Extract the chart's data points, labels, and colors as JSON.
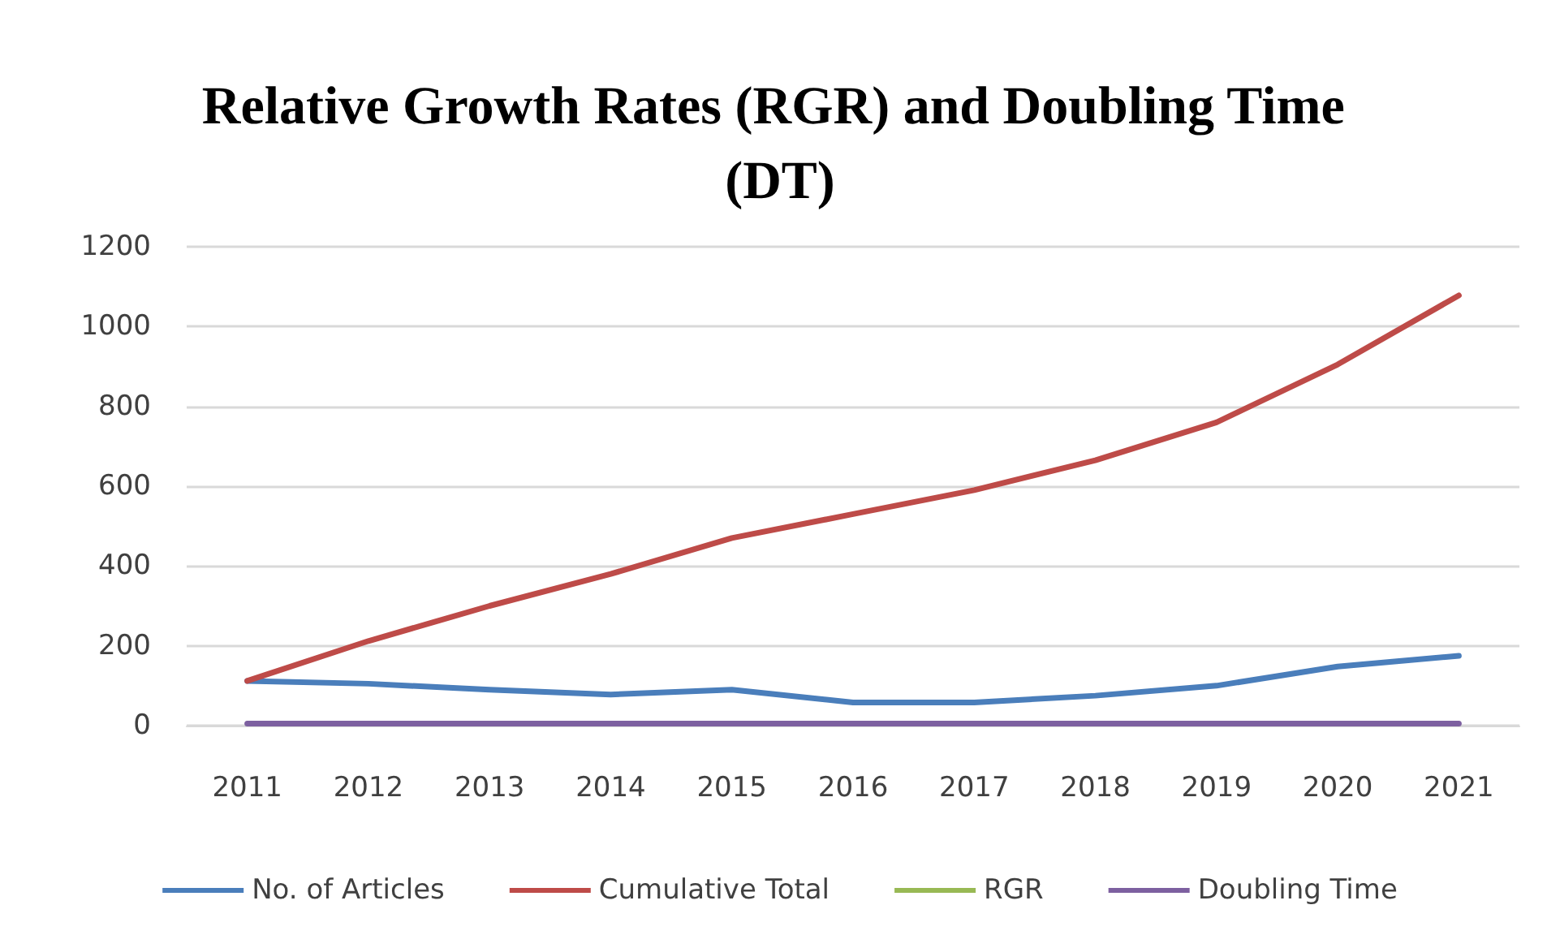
{
  "chart_data": {
    "type": "line",
    "title": "Relative Growth Rates (RGR) and Doubling Time (DT)",
    "categories": [
      "2011",
      "2012",
      "2013",
      "2014",
      "2015",
      "2016",
      "2017",
      "2018",
      "2019",
      "2020",
      "2021"
    ],
    "series": [
      {
        "name": "No. of Articles",
        "color": "#4a7ebb",
        "values": [
          112,
          105,
          90,
          78,
          90,
          58,
          58,
          75,
          100,
          148,
          175
        ]
      },
      {
        "name": "Cumulative Total",
        "color": "#be4b48",
        "values": [
          112,
          212,
          300,
          380,
          470,
          530,
          590,
          665,
          760,
          905,
          1078
        ]
      },
      {
        "name": "RGR",
        "color": "#98b954",
        "values": [
          null,
          null,
          null,
          null,
          null,
          null,
          null,
          null,
          null,
          null,
          null
        ]
      },
      {
        "name": "Doubling Time",
        "color": "#7d60a0",
        "values": [
          5,
          5,
          5,
          5,
          5,
          5,
          5,
          5,
          5,
          5,
          5
        ]
      }
    ],
    "ylim": [
      0,
      1200
    ],
    "yticks": [
      0,
      200,
      400,
      600,
      800,
      1000,
      1200
    ],
    "grid": "y",
    "legend": "bottom",
    "marker": "none",
    "line_style": "solid"
  }
}
